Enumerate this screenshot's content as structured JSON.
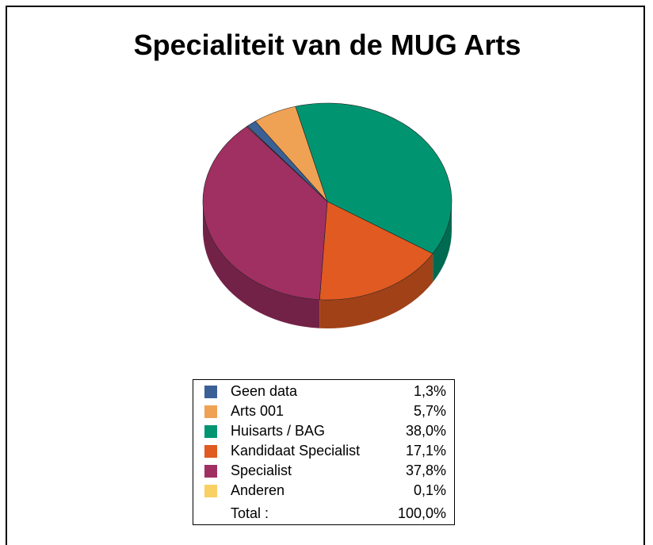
{
  "chart_data": {
    "type": "pie3d",
    "title": "Specialiteit van de MUG Arts",
    "categories": [
      "Geen data",
      "Arts 001",
      "Huisarts / BAG",
      "Kandidaat Specialist",
      "Specialist",
      "Anderen"
    ],
    "values": [
      1.3,
      5.7,
      38.0,
      17.1,
      37.8,
      0.1
    ],
    "value_labels": [
      "1,3%",
      "5,7%",
      "38,0%",
      "17,1%",
      "37,8%",
      "0,1%"
    ],
    "colors": [
      "#3b6096",
      "#f0a254",
      "#009570",
      "#e05a22",
      "#a02f62",
      "#f9d064"
    ],
    "total": {
      "label": "Total :",
      "value": 100,
      "value_label": "100,0%"
    }
  }
}
